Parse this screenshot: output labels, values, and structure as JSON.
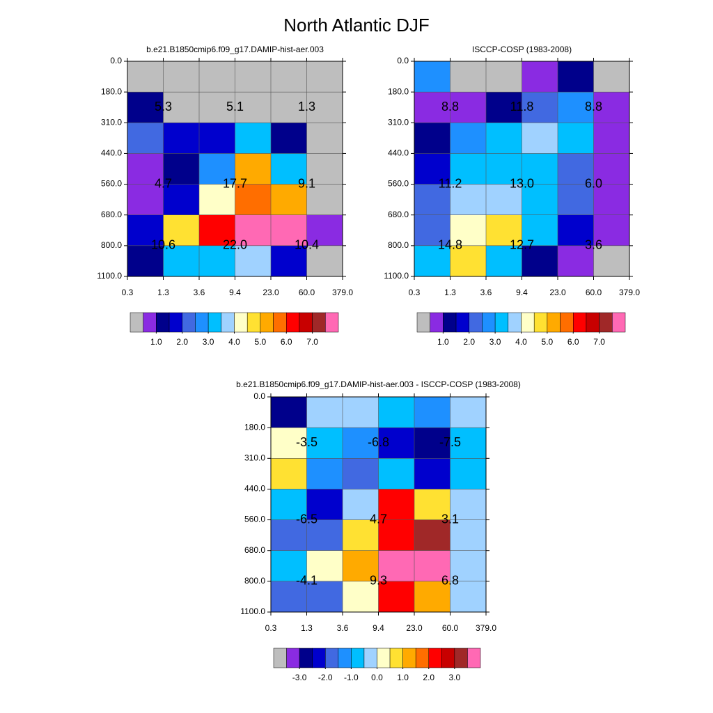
{
  "title": "North Atlantic DJF",
  "chart_data": [
    {
      "type": "heatmap",
      "title": "b.e21.B1850cmip6.f09_g17.DAMIP-hist-aer.003",
      "x_edges": [
        "0.3",
        "1.3",
        "3.6",
        "9.4",
        "23.0",
        "60.0",
        "379.0"
      ],
      "y_edges": [
        "0.0",
        "180.0",
        "310.0",
        "440.0",
        "560.0",
        "680.0",
        "800.0",
        "1100.0"
      ],
      "values": [
        [
          0.25,
          0.25,
          0.25,
          0.25,
          0.25,
          0.25
        ],
        [
          1.25,
          0.25,
          0.25,
          0.25,
          0.25,
          0.25
        ],
        [
          2.25,
          1.75,
          1.75,
          3.25,
          1.25,
          0.25
        ],
        [
          0.75,
          1.25,
          2.75,
          5.25,
          3.25,
          0.25
        ],
        [
          0.75,
          1.75,
          4.25,
          5.75,
          5.25,
          0.25
        ],
        [
          1.75,
          4.75,
          6.25,
          7.75,
          7.75,
          0.75
        ],
        [
          1.25,
          3.25,
          3.25,
          3.75,
          1.75,
          0.25
        ]
      ],
      "summary": [
        [
          5.3,
          5.1,
          1.3
        ],
        [
          4.7,
          17.7,
          9.1
        ],
        [
          10.6,
          22.0,
          10.4
        ]
      ],
      "summary_labels": [
        [
          "5.3",
          "5.1",
          "1.3"
        ],
        [
          "4.7",
          "17.7",
          "9.1"
        ],
        [
          "10.6",
          "22.0",
          "10.4"
        ]
      ],
      "levels": [
        0.5,
        1.0,
        1.5,
        2.0,
        2.5,
        3.0,
        3.5,
        4.0,
        4.5,
        5.0,
        5.5,
        6.0,
        6.5,
        7.0,
        7.5
      ],
      "colors": [
        "#bebebe",
        "#8a2be2",
        "#00008b",
        "#0000cd",
        "#4169e1",
        "#1e90ff",
        "#00bfff",
        "#a0d2ff",
        "#ffffc8",
        "#ffe132",
        "#ffaa00",
        "#ff6e00",
        "#ff0000",
        "#c80000",
        "#a02828",
        "#ff69b4"
      ],
      "colorbar_ticks": [
        {
          "value": 1.0,
          "label": "1.0"
        },
        {
          "value": 2.0,
          "label": "2.0"
        },
        {
          "value": 3.0,
          "label": "3.0"
        },
        {
          "value": 4.0,
          "label": "4.0"
        },
        {
          "value": 5.0,
          "label": "5.0"
        },
        {
          "value": 6.0,
          "label": "6.0"
        },
        {
          "value": 7.0,
          "label": "7.0"
        }
      ]
    },
    {
      "type": "heatmap",
      "title": "ISCCP-COSP (1983-2008)",
      "x_edges": [
        "0.3",
        "1.3",
        "3.6",
        "9.4",
        "23.0",
        "60.0",
        "379.0"
      ],
      "y_edges": [
        "0.0",
        "180.0",
        "310.0",
        "440.0",
        "560.0",
        "680.0",
        "800.0",
        "1100.0"
      ],
      "values": [
        [
          2.75,
          0.25,
          0.25,
          0.75,
          1.25,
          0.25
        ],
        [
          0.75,
          0.75,
          1.25,
          2.25,
          2.75,
          0.75
        ],
        [
          1.25,
          2.75,
          3.25,
          3.75,
          3.25,
          0.75
        ],
        [
          1.75,
          3.25,
          3.25,
          3.25,
          2.25,
          0.75
        ],
        [
          2.25,
          3.75,
          3.75,
          3.25,
          2.25,
          0.75
        ],
        [
          2.25,
          4.25,
          4.75,
          3.25,
          1.75,
          0.75
        ],
        [
          3.25,
          4.75,
          3.25,
          1.25,
          0.75,
          0.25
        ]
      ],
      "summary": [
        [
          8.8,
          11.8,
          8.8
        ],
        [
          11.2,
          13.0,
          6.0
        ],
        [
          14.8,
          12.7,
          3.6
        ]
      ],
      "summary_labels": [
        [
          "8.8",
          "11.8",
          "8.8"
        ],
        [
          "11.2",
          "13.0",
          "6.0"
        ],
        [
          "14.8",
          "12.7",
          "3.6"
        ]
      ],
      "levels": [
        0.5,
        1.0,
        1.5,
        2.0,
        2.5,
        3.0,
        3.5,
        4.0,
        4.5,
        5.0,
        5.5,
        6.0,
        6.5,
        7.0,
        7.5
      ],
      "colors": [
        "#bebebe",
        "#8a2be2",
        "#00008b",
        "#0000cd",
        "#4169e1",
        "#1e90ff",
        "#00bfff",
        "#a0d2ff",
        "#ffffc8",
        "#ffe132",
        "#ffaa00",
        "#ff6e00",
        "#ff0000",
        "#c80000",
        "#a02828",
        "#ff69b4"
      ],
      "colorbar_ticks": [
        {
          "value": 1.0,
          "label": "1.0"
        },
        {
          "value": 2.0,
          "label": "2.0"
        },
        {
          "value": 3.0,
          "label": "3.0"
        },
        {
          "value": 4.0,
          "label": "4.0"
        },
        {
          "value": 5.0,
          "label": "5.0"
        },
        {
          "value": 6.0,
          "label": "6.0"
        },
        {
          "value": 7.0,
          "label": "7.0"
        }
      ]
    },
    {
      "type": "heatmap",
      "title": "b.e21.B1850cmip6.f09_g17.DAMIP-hist-aer.003 - ISCCP-COSP (1983-2008)",
      "x_edges": [
        "0.3",
        "1.3",
        "3.6",
        "9.4",
        "23.0",
        "60.0",
        "379.0"
      ],
      "y_edges": [
        "0.0",
        "180.0",
        "310.0",
        "440.0",
        "560.0",
        "680.0",
        "800.0",
        "1100.0"
      ],
      "values": [
        [
          -2.75,
          -0.25,
          -0.25,
          -0.75,
          -1.25,
          -0.25
        ],
        [
          0.25,
          -0.75,
          -1.25,
          -2.25,
          -2.75,
          -0.75
        ],
        [
          0.75,
          -1.25,
          -1.75,
          -0.75,
          -2.25,
          -0.75
        ],
        [
          -0.75,
          -2.25,
          -0.25,
          2.25,
          0.75,
          -0.25
        ],
        [
          -1.75,
          -1.75,
          0.75,
          2.25,
          3.25,
          -0.25
        ],
        [
          -0.75,
          0.25,
          1.25,
          3.75,
          3.75,
          -0.25
        ],
        [
          -1.75,
          -1.75,
          0.25,
          2.25,
          1.25,
          -0.25
        ]
      ],
      "summary": [
        [
          -3.5,
          -6.8,
          -7.5
        ],
        [
          -6.5,
          4.7,
          3.1
        ],
        [
          -4.1,
          9.3,
          6.8
        ]
      ],
      "summary_labels": [
        [
          "-3.5",
          "-6.8",
          "-7.5"
        ],
        [
          "-6.5",
          "4.7",
          "3.1"
        ],
        [
          "-4.1",
          "9.3",
          "6.8"
        ]
      ],
      "levels": [
        -3.5,
        -3.0,
        -2.5,
        -2.0,
        -1.5,
        -1.0,
        -0.5,
        0.0,
        0.5,
        1.0,
        1.5,
        2.0,
        2.5,
        3.0,
        3.5
      ],
      "colors": [
        "#bebebe",
        "#8a2be2",
        "#00008b",
        "#0000cd",
        "#4169e1",
        "#1e90ff",
        "#00bfff",
        "#a0d2ff",
        "#ffffc8",
        "#ffe132",
        "#ffaa00",
        "#ff6e00",
        "#ff0000",
        "#c80000",
        "#a02828",
        "#ff69b4"
      ],
      "colorbar_ticks": [
        {
          "value": -3.0,
          "label": "-3.0"
        },
        {
          "value": -2.0,
          "label": "-2.0"
        },
        {
          "value": -1.0,
          "label": "-1.0"
        },
        {
          "value": 0.0,
          "label": "0.0"
        },
        {
          "value": 1.0,
          "label": "1.0"
        },
        {
          "value": 2.0,
          "label": "2.0"
        },
        {
          "value": 3.0,
          "label": "3.0"
        }
      ]
    }
  ]
}
